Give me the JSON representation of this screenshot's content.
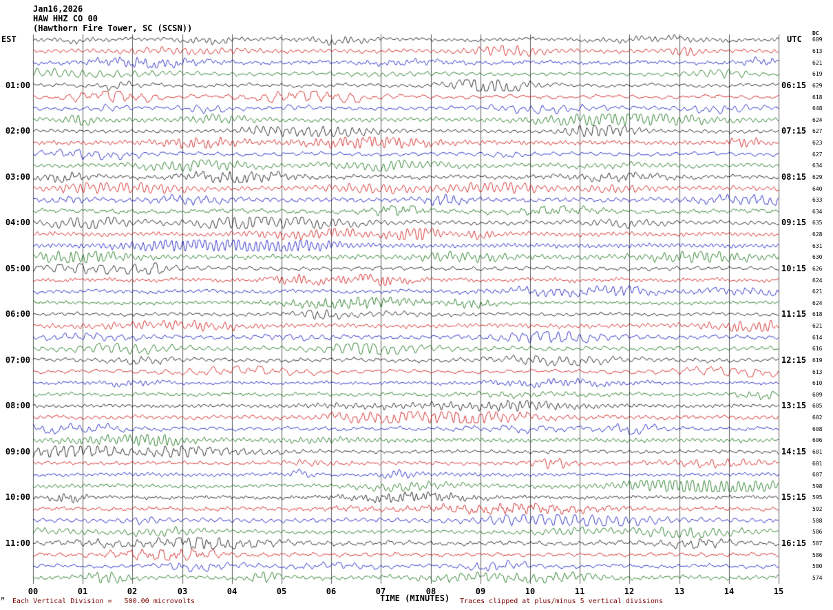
{
  "header": {
    "date": "Jan16,2026",
    "station": "HAW HHZ CO 00",
    "location": "(Hawthorn Fire Tower, SC (SCSN))"
  },
  "axis": {
    "left_header": "EST",
    "right_header": "UTC",
    "dc_header": "DC",
    "x_title": "TIME (MINUTES)",
    "x_ticks": [
      "00",
      "01",
      "02",
      "03",
      "04",
      "05",
      "06",
      "07",
      "08",
      "09",
      "10",
      "11",
      "12",
      "13",
      "14",
      "15"
    ]
  },
  "footer": {
    "left": "Each Vertical Division =   500.00 microvolts",
    "right": "Traces clipped at plus/minus 5 vertical divisions",
    "corner": "M"
  },
  "colors": {
    "black": "#000000",
    "red": "#cc0000",
    "blue": "#0000bb",
    "green": "#006600",
    "grid": "#5a5a5a",
    "note_text": "#7b0000"
  },
  "rows": [
    {
      "color": "black",
      "left": "",
      "right": "",
      "dc": "609"
    },
    {
      "color": "red",
      "left": "",
      "right": "",
      "dc": "613"
    },
    {
      "color": "blue",
      "left": "",
      "right": "",
      "dc": "621"
    },
    {
      "color": "green",
      "left": "",
      "right": "",
      "dc": "619"
    },
    {
      "color": "black",
      "left": "01:00",
      "right": "06:15",
      "dc": "629"
    },
    {
      "color": "red",
      "left": "",
      "right": "",
      "dc": "618"
    },
    {
      "color": "blue",
      "left": "",
      "right": "",
      "dc": "648"
    },
    {
      "color": "green",
      "left": "",
      "right": "",
      "dc": "624"
    },
    {
      "color": "black",
      "left": "02:00",
      "right": "07:15",
      "dc": "627"
    },
    {
      "color": "red",
      "left": "",
      "right": "",
      "dc": "623"
    },
    {
      "color": "blue",
      "left": "",
      "right": "",
      "dc": "627"
    },
    {
      "color": "green",
      "left": "",
      "right": "",
      "dc": "634"
    },
    {
      "color": "black",
      "left": "03:00",
      "right": "08:15",
      "dc": "629"
    },
    {
      "color": "red",
      "left": "",
      "right": "",
      "dc": "640"
    },
    {
      "color": "blue",
      "left": "",
      "right": "",
      "dc": "633"
    },
    {
      "color": "green",
      "left": "",
      "right": "",
      "dc": "634"
    },
    {
      "color": "black",
      "left": "04:00",
      "right": "09:15",
      "dc": "635"
    },
    {
      "color": "red",
      "left": "",
      "right": "",
      "dc": "628"
    },
    {
      "color": "blue",
      "left": "",
      "right": "",
      "dc": "631"
    },
    {
      "color": "green",
      "left": "",
      "right": "",
      "dc": "630"
    },
    {
      "color": "black",
      "left": "05:00",
      "right": "10:15",
      "dc": "626"
    },
    {
      "color": "red",
      "left": "",
      "right": "",
      "dc": "624"
    },
    {
      "color": "blue",
      "left": "",
      "right": "",
      "dc": "621"
    },
    {
      "color": "green",
      "left": "",
      "right": "",
      "dc": "624"
    },
    {
      "color": "black",
      "left": "06:00",
      "right": "11:15",
      "dc": "618"
    },
    {
      "color": "red",
      "left": "",
      "right": "",
      "dc": "621"
    },
    {
      "color": "blue",
      "left": "",
      "right": "",
      "dc": "614"
    },
    {
      "color": "green",
      "left": "",
      "right": "",
      "dc": "616"
    },
    {
      "color": "black",
      "left": "07:00",
      "right": "12:15",
      "dc": "619"
    },
    {
      "color": "red",
      "left": "",
      "right": "",
      "dc": "613"
    },
    {
      "color": "blue",
      "left": "",
      "right": "",
      "dc": "610"
    },
    {
      "color": "green",
      "left": "",
      "right": "",
      "dc": "609"
    },
    {
      "color": "black",
      "left": "08:00",
      "right": "13:15",
      "dc": "605"
    },
    {
      "color": "red",
      "left": "",
      "right": "",
      "dc": "602"
    },
    {
      "color": "blue",
      "left": "",
      "right": "",
      "dc": "608"
    },
    {
      "color": "green",
      "left": "",
      "right": "",
      "dc": "606"
    },
    {
      "color": "black",
      "left": "09:00",
      "right": "14:15",
      "dc": "601"
    },
    {
      "color": "red",
      "left": "",
      "right": "",
      "dc": "601"
    },
    {
      "color": "blue",
      "left": "",
      "right": "",
      "dc": "607"
    },
    {
      "color": "green",
      "left": "",
      "right": "",
      "dc": "598"
    },
    {
      "color": "black",
      "left": "10:00",
      "right": "15:15",
      "dc": "595"
    },
    {
      "color": "red",
      "left": "",
      "right": "",
      "dc": "592"
    },
    {
      "color": "blue",
      "left": "",
      "right": "",
      "dc": "588"
    },
    {
      "color": "green",
      "left": "",
      "right": "",
      "dc": "586"
    },
    {
      "color": "black",
      "left": "11:00",
      "right": "16:15",
      "dc": "587"
    },
    {
      "color": "red",
      "left": "",
      "right": "",
      "dc": "586"
    },
    {
      "color": "blue",
      "left": "",
      "right": "",
      "dc": "580"
    },
    {
      "color": "green",
      "left": "",
      "right": "",
      "dc": "574"
    }
  ],
  "chart_data": {
    "type": "line",
    "subtype": "helicorder_seismogram",
    "title": "HAW HHZ CO 00 — Jan16,2026 — (Hawthorn Fire Tower, SC (SCSN))",
    "xlabel": "TIME (MINUTES)",
    "x_range": [
      0,
      15
    ],
    "x_ticks": [
      0,
      1,
      2,
      3,
      4,
      5,
      6,
      7,
      8,
      9,
      10,
      11,
      12,
      13,
      14,
      15
    ],
    "num_rows": 48,
    "minutes_per_row": 15,
    "trace_color_cycle": [
      "black",
      "red",
      "blue",
      "green"
    ],
    "est_hour_labels": [
      "01:00",
      "02:00",
      "03:00",
      "04:00",
      "05:00",
      "06:00",
      "07:00",
      "08:00",
      "09:00",
      "10:00",
      "11:00"
    ],
    "utc_hour_labels": [
      "06:15",
      "07:15",
      "08:15",
      "09:15",
      "10:15",
      "11:15",
      "12:15",
      "13:15",
      "14:15",
      "15:15",
      "16:15"
    ],
    "dc_offsets": [
      609,
      613,
      621,
      619,
      629,
      618,
      648,
      624,
      627,
      623,
      627,
      634,
      629,
      640,
      633,
      634,
      635,
      628,
      631,
      630,
      626,
      624,
      621,
      624,
      618,
      621,
      614,
      616,
      619,
      613,
      610,
      609,
      605,
      602,
      608,
      606,
      601,
      601,
      607,
      598,
      595,
      592,
      588,
      586,
      587,
      586,
      580,
      574
    ],
    "vertical_division_microvolts": 500.0,
    "clip_divisions": 5,
    "waveform_note": "continuous background seismic noise traces; individual samples not readable from image",
    "grid": true,
    "legend_position": "none"
  }
}
